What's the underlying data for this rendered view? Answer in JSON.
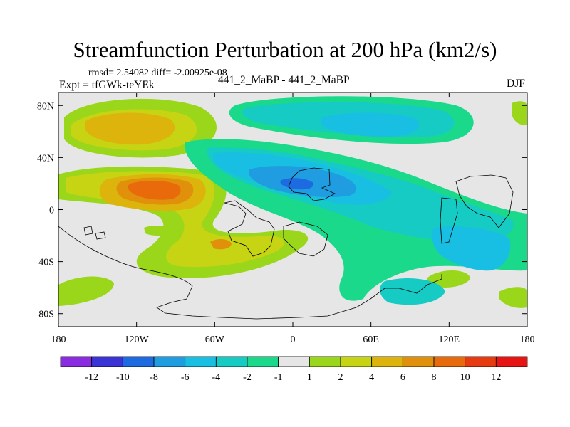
{
  "header": {
    "title": "Streamfunction Perturbation at 200 hPa (km2/s)",
    "stats": "rmsd= 2.54082  diff= -2.00925e-08",
    "expt": "Expt = tfGWk-teYEk",
    "center": "441_2_MaBP - 441_2_MaBP",
    "season": "DJF"
  },
  "chart_data": {
    "type": "heatmap",
    "title": "Streamfunction Perturbation at 200 hPa (km2/s)",
    "xlabel": "",
    "ylabel": "",
    "xlim": [
      -180,
      180
    ],
    "ylim": [
      -90,
      90
    ],
    "x_ticks": [
      {
        "value": -180,
        "label": "180"
      },
      {
        "value": -120,
        "label": "120W"
      },
      {
        "value": -60,
        "label": "60W"
      },
      {
        "value": 0,
        "label": "0"
      },
      {
        "value": 60,
        "label": "60E"
      },
      {
        "value": 120,
        "label": "120E"
      },
      {
        "value": 180,
        "label": "180"
      }
    ],
    "y_ticks": [
      {
        "value": 80,
        "label": "80N"
      },
      {
        "value": 40,
        "label": "40N"
      },
      {
        "value": 0,
        "label": "0"
      },
      {
        "value": -40,
        "label": "40S"
      },
      {
        "value": -80,
        "label": "80S"
      }
    ],
    "levels": [
      -12,
      -10,
      -8,
      -6,
      -4,
      -2,
      -1,
      1,
      2,
      4,
      6,
      8,
      10,
      12
    ],
    "level_labels": [
      "-12",
      "-10",
      "-8",
      "-6",
      "-4",
      "-2",
      "-1",
      "1",
      "2",
      "4",
      "6",
      "8",
      "10",
      "12"
    ],
    "colors": [
      "#8a2be2",
      "#3a33d6",
      "#1e6ae0",
      "#1f9de0",
      "#18bfe2",
      "#16cbc4",
      "#1ad98a",
      "#e6e6e6",
      "#9ad61a",
      "#c6d414",
      "#dcb40c",
      "#e0900a",
      "#e86a0a",
      "#e83a10",
      "#e81414"
    ],
    "features": [
      {
        "lon": -125,
        "lat": 62,
        "value": 5.6
      },
      {
        "lon": -97,
        "lat": 16,
        "value": 9.3
      },
      {
        "lon": -62,
        "lat": -28,
        "value": 3.2
      },
      {
        "lon": -35,
        "lat": -32,
        "value": 2.6
      },
      {
        "lon": -5,
        "lat": -42,
        "value": 2.2
      },
      {
        "lon": -160,
        "lat": -62,
        "value": 1.8
      },
      {
        "lon": 22,
        "lat": 20,
        "value": -7.4
      },
      {
        "lon": 60,
        "lat": 61,
        "value": -5.2
      },
      {
        "lon": 100,
        "lat": -18,
        "value": -3.0
      },
      {
        "lon": 160,
        "lat": 50,
        "value": 1.5
      }
    ]
  }
}
